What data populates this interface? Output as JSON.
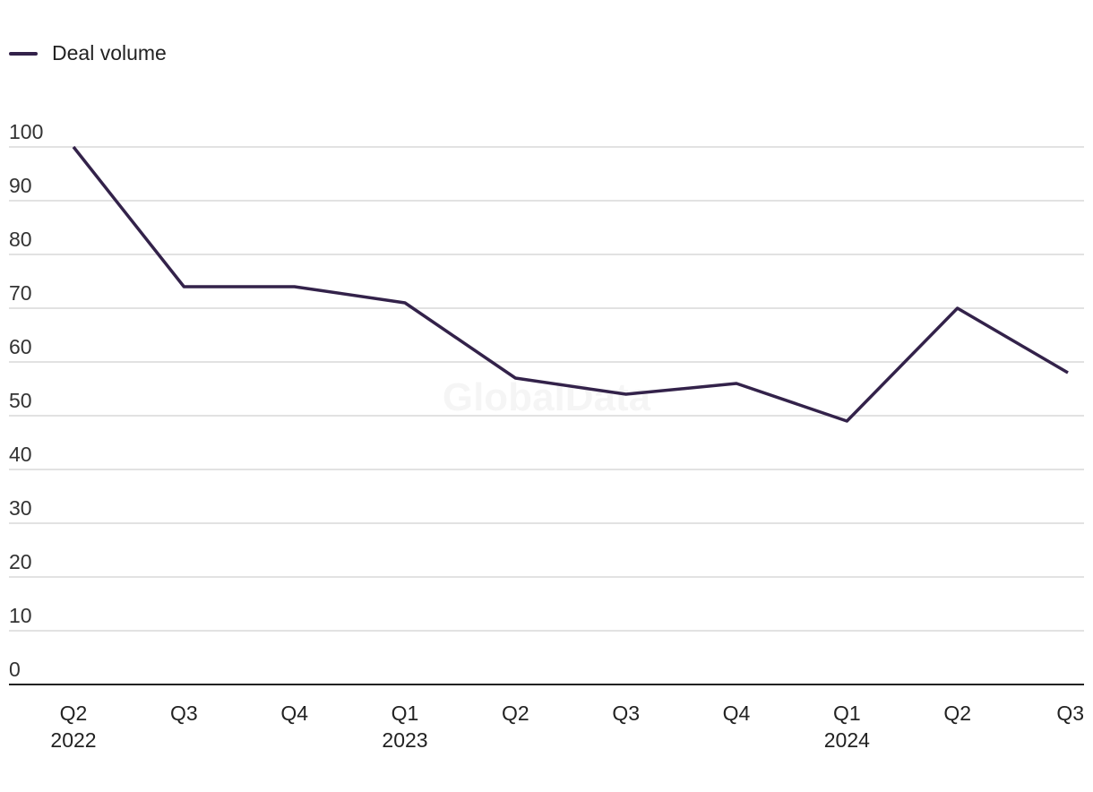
{
  "legend": {
    "label": "Deal volume"
  },
  "watermark": "GlobalData",
  "colors": {
    "line": "#33224a",
    "grid": "#d9d9d9",
    "axis": "#222222"
  },
  "chart_data": {
    "type": "line",
    "title": "",
    "xlabel": "",
    "ylabel": "",
    "categories": [
      "Q2 2022",
      "Q3 2022",
      "Q4 2022",
      "Q1 2023",
      "Q2 2023",
      "Q3 2023",
      "Q4 2023",
      "Q1 2024",
      "Q2 2024",
      "Q3 2024"
    ],
    "x_tick_labels": [
      {
        "quarter": "Q2",
        "year": "2022"
      },
      {
        "quarter": "Q3",
        "year": ""
      },
      {
        "quarter": "Q4",
        "year": ""
      },
      {
        "quarter": "Q1",
        "year": "2023"
      },
      {
        "quarter": "Q2",
        "year": ""
      },
      {
        "quarter": "Q3",
        "year": ""
      },
      {
        "quarter": "Q4",
        "year": ""
      },
      {
        "quarter": "Q1",
        "year": "2024"
      },
      {
        "quarter": "Q2",
        "year": ""
      },
      {
        "quarter": "Q3",
        "year": ""
      }
    ],
    "series": [
      {
        "name": "Deal volume",
        "values": [
          100,
          74,
          74,
          71,
          57,
          54,
          56,
          49,
          70,
          58
        ]
      }
    ],
    "ylim": [
      0,
      100
    ],
    "yticks": [
      0,
      10,
      20,
      30,
      40,
      50,
      60,
      70,
      80,
      90,
      100
    ],
    "grid": true,
    "legend_position": "top-left"
  }
}
